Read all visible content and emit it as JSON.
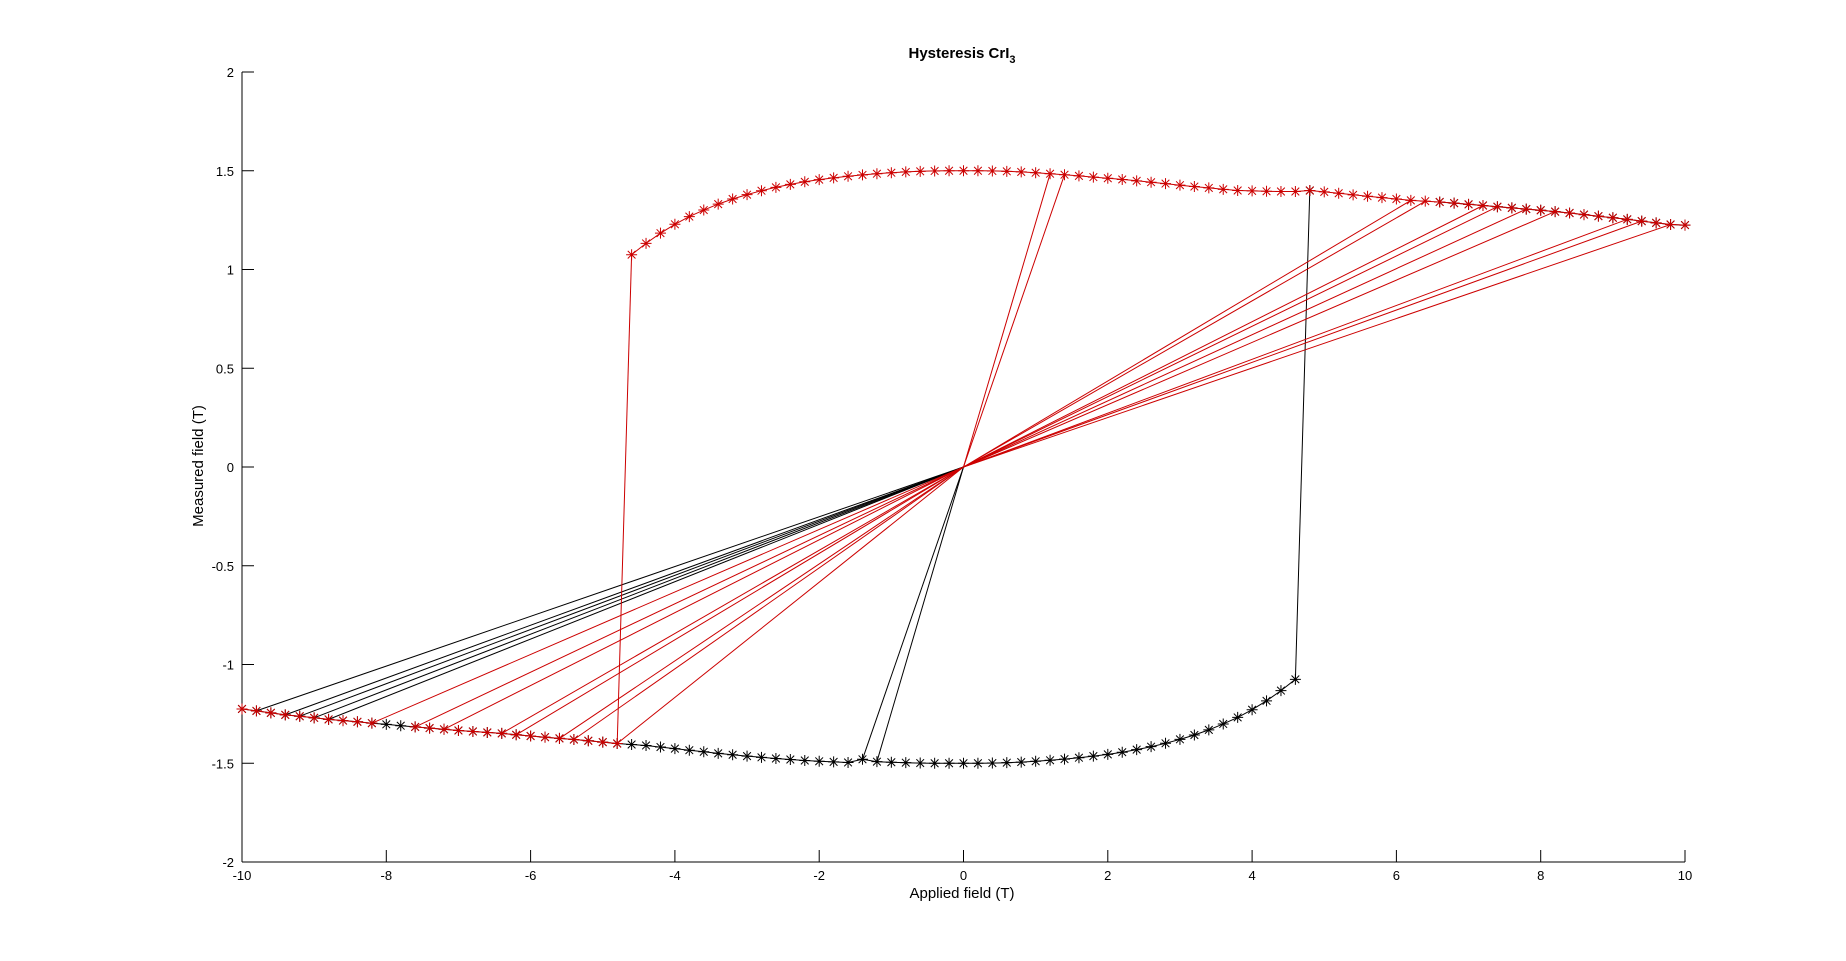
{
  "chart_data": {
    "type": "line",
    "title": "Hysteresis CrI",
    "title_subscript": "3",
    "xlabel": "Applied field (T)",
    "ylabel": "Measured field (T)",
    "xlim": [
      -10,
      10
    ],
    "ylim": [
      -2,
      2
    ],
    "xticks": [
      -10,
      -8,
      -6,
      -4,
      -2,
      0,
      2,
      4,
      6,
      8,
      10
    ],
    "yticks": [
      -2,
      -1.5,
      -1,
      -0.5,
      0,
      0.5,
      1,
      1.5,
      2
    ],
    "xtick_labels": [
      "-10",
      "-8",
      "-6",
      "-4",
      "-2",
      "0",
      "2",
      "4",
      "6",
      "8",
      "10"
    ],
    "ytick_labels": [
      "-2",
      "-1.5",
      "-1",
      "-0.5",
      "0",
      "0.5",
      "1",
      "1.5",
      "2"
    ],
    "grid": false,
    "marker": "asterisk",
    "series": [
      {
        "color": "#000000",
        "segments": [
          [
            [
              0,
              -1.5
            ],
            [
              0.2,
              -1.5
            ],
            [
              0.4,
              -1.499
            ],
            [
              0.6,
              -1.497
            ],
            [
              0.8,
              -1.494
            ],
            [
              1.0,
              -1.49
            ],
            [
              1.2,
              -1.485
            ],
            [
              1.4,
              -1.479
            ],
            [
              1.6,
              -1.472
            ],
            [
              1.8,
              -1.464
            ],
            [
              2.0,
              -1.455
            ],
            [
              2.2,
              -1.444
            ],
            [
              2.4,
              -1.431
            ],
            [
              2.6,
              -1.416
            ],
            [
              2.8,
              -1.399
            ],
            [
              3.0,
              -1.379
            ],
            [
              3.2,
              -1.357
            ],
            [
              3.4,
              -1.331
            ],
            [
              3.6,
              -1.301
            ],
            [
              3.8,
              -1.268
            ],
            [
              4.0,
              -1.229
            ],
            [
              4.2,
              -1.184
            ],
            [
              4.4,
              -1.132
            ],
            [
              4.6,
              -1.075
            ]
          ],
          [
            [
              4.6,
              -1.075
            ],
            [
              4.8,
              1.4
            ]
          ],
          [
            [
              -4.8,
              -1.4
            ],
            [
              -4.6,
              -1.405
            ],
            [
              -4.4,
              -1.41
            ],
            [
              -4.2,
              -1.418
            ],
            [
              -4.0,
              -1.426
            ],
            [
              -3.8,
              -1.434
            ],
            [
              -3.6,
              -1.442
            ],
            [
              -3.4,
              -1.45
            ],
            [
              -3.2,
              -1.457
            ],
            [
              -3.0,
              -1.464
            ],
            [
              -2.8,
              -1.47
            ],
            [
              -2.6,
              -1.476
            ],
            [
              -2.4,
              -1.481
            ],
            [
              -2.2,
              -1.486
            ],
            [
              -2.0,
              -1.49
            ],
            [
              -1.8,
              -1.493
            ],
            [
              -1.6,
              -1.496
            ],
            [
              -1.4,
              -1.48
            ],
            [
              -1.2,
              -1.492
            ],
            [
              -1.0,
              -1.495
            ],
            [
              -0.8,
              -1.497
            ],
            [
              -0.6,
              -1.499
            ],
            [
              -0.4,
              -1.5
            ],
            [
              -0.2,
              -1.5
            ],
            [
              0,
              -1.5
            ]
          ],
          [
            [
              -1.4,
              -1.48
            ],
            [
              0,
              0
            ]
          ],
          [
            [
              -1.2,
              -1.492
            ],
            [
              0,
              0
            ]
          ],
          [
            [
              -10,
              -1.225
            ],
            [
              -9.8,
              -1.235
            ],
            [
              -9.6,
              -1.245
            ],
            [
              -9.4,
              -1.255
            ],
            [
              -9.2,
              -1.262
            ],
            [
              -9.0,
              -1.27
            ],
            [
              -8.8,
              -1.278
            ],
            [
              -8.6,
              -1.284
            ],
            [
              -8.4,
              -1.29
            ],
            [
              -8.2,
              -1.297
            ],
            [
              -8.0,
              -1.303
            ],
            [
              -7.8,
              -1.31
            ],
            [
              -7.6,
              -1.316
            ],
            [
              -7.4,
              -1.322
            ],
            [
              -7.2,
              -1.328
            ],
            [
              -7.0,
              -1.334
            ],
            [
              -6.8,
              -1.339
            ],
            [
              -6.6,
              -1.344
            ],
            [
              -6.4,
              -1.349
            ],
            [
              -6.2,
              -1.356
            ],
            [
              -6.0,
              -1.362
            ],
            [
              -5.8,
              -1.368
            ],
            [
              -5.6,
              -1.374
            ],
            [
              -5.4,
              -1.38
            ],
            [
              -5.2,
              -1.386
            ],
            [
              -5.0,
              -1.393
            ],
            [
              -4.8,
              -1.4
            ]
          ],
          [
            [
              -9.8,
              -1.235
            ],
            [
              0,
              0
            ]
          ],
          [
            [
              -9.4,
              -1.255
            ],
            [
              0,
              0
            ]
          ],
          [
            [
              -9.2,
              -1.262
            ],
            [
              0,
              0
            ]
          ],
          [
            [
              -9.0,
              -1.27
            ],
            [
              0,
              0
            ]
          ],
          [
            [
              -8.8,
              -1.278
            ],
            [
              0,
              0
            ]
          ],
          [
            [
              6.6,
              1.342
            ],
            [
              6.8,
              1.336
            ],
            [
              7.0,
              1.33
            ],
            [
              7.2,
              1.324
            ],
            [
              7.4,
              1.318
            ],
            [
              7.6,
              1.312
            ],
            [
              7.8,
              1.306
            ],
            [
              8.0,
              1.3
            ],
            [
              8.2,
              1.293
            ],
            [
              8.4,
              1.286
            ],
            [
              8.6,
              1.278
            ],
            [
              8.8,
              1.27
            ],
            [
              9.0,
              1.262
            ],
            [
              9.2,
              1.254
            ],
            [
              9.4,
              1.245
            ],
            [
              9.6,
              1.236
            ],
            [
              9.8,
              1.228
            ],
            [
              10,
              1.225
            ]
          ]
        ]
      },
      {
        "color": "#cc0000",
        "segments": [
          [
            [
              -4.6,
              1.075
            ],
            [
              -4.4,
              1.132
            ],
            [
              -4.2,
              1.184
            ],
            [
              -4.0,
              1.229
            ],
            [
              -3.8,
              1.268
            ],
            [
              -3.6,
              1.301
            ],
            [
              -3.4,
              1.331
            ],
            [
              -3.2,
              1.357
            ],
            [
              -3.0,
              1.379
            ],
            [
              -2.8,
              1.399
            ],
            [
              -2.6,
              1.416
            ],
            [
              -2.4,
              1.431
            ],
            [
              -2.2,
              1.444
            ],
            [
              -2.0,
              1.455
            ],
            [
              -1.8,
              1.464
            ],
            [
              -1.6,
              1.472
            ],
            [
              -1.4,
              1.479
            ],
            [
              -1.2,
              1.485
            ],
            [
              -1.0,
              1.49
            ],
            [
              -0.8,
              1.494
            ],
            [
              -0.6,
              1.497
            ],
            [
              -0.4,
              1.499
            ],
            [
              -0.2,
              1.5
            ],
            [
              0,
              1.5
            ],
            [
              0.2,
              1.5
            ],
            [
              0.4,
              1.499
            ],
            [
              0.6,
              1.497
            ],
            [
              0.8,
              1.494
            ],
            [
              1.0,
              1.49
            ],
            [
              1.2,
              1.485
            ],
            [
              1.4,
              1.48
            ],
            [
              1.6,
              1.474
            ],
            [
              1.8,
              1.468
            ],
            [
              2.0,
              1.462
            ],
            [
              2.2,
              1.456
            ],
            [
              2.4,
              1.449
            ],
            [
              2.6,
              1.442
            ],
            [
              2.8,
              1.435
            ],
            [
              3.0,
              1.427
            ],
            [
              3.2,
              1.42
            ],
            [
              3.4,
              1.413
            ],
            [
              3.6,
              1.406
            ],
            [
              3.8,
              1.4
            ],
            [
              4.0,
              1.398
            ],
            [
              4.2,
              1.396
            ],
            [
              4.4,
              1.395
            ],
            [
              4.6,
              1.395
            ],
            [
              4.8,
              1.4
            ],
            [
              5.0,
              1.393
            ],
            [
              5.2,
              1.386
            ],
            [
              5.4,
              1.378
            ],
            [
              5.6,
              1.371
            ],
            [
              5.8,
              1.364
            ],
            [
              6.0,
              1.357
            ],
            [
              6.2,
              1.35
            ],
            [
              6.4,
              1.346
            ],
            [
              6.6,
              1.342
            ],
            [
              6.8,
              1.336
            ],
            [
              7.0,
              1.33
            ],
            [
              7.2,
              1.324
            ],
            [
              7.4,
              1.318
            ],
            [
              7.6,
              1.312
            ],
            [
              7.8,
              1.306
            ],
            [
              8.0,
              1.3
            ],
            [
              8.2,
              1.293
            ],
            [
              8.4,
              1.286
            ],
            [
              8.6,
              1.278
            ],
            [
              8.8,
              1.27
            ],
            [
              9.0,
              1.262
            ],
            [
              9.2,
              1.254
            ],
            [
              9.4,
              1.245
            ],
            [
              9.6,
              1.236
            ],
            [
              9.8,
              1.228
            ],
            [
              10,
              1.225
            ]
          ],
          [
            [
              -4.8,
              -1.4
            ],
            [
              -4.6,
              1.075
            ]
          ],
          [
            [
              1.2,
              1.485
            ],
            [
              0,
              0
            ]
          ],
          [
            [
              1.4,
              1.48
            ],
            [
              0,
              0
            ]
          ],
          [
            [
              6.2,
              1.35
            ],
            [
              0,
              0
            ]
          ],
          [
            [
              6.4,
              1.346
            ],
            [
              0,
              0
            ]
          ],
          [
            [
              7.2,
              1.324
            ],
            [
              0,
              0
            ]
          ],
          [
            [
              7.4,
              1.318
            ],
            [
              0,
              0
            ]
          ],
          [
            [
              7.8,
              1.306
            ],
            [
              0,
              0
            ]
          ],
          [
            [
              8.2,
              1.293
            ],
            [
              0,
              0
            ]
          ],
          [
            [
              9.2,
              1.254
            ],
            [
              0,
              0
            ]
          ],
          [
            [
              9.4,
              1.245
            ],
            [
              0,
              0
            ]
          ],
          [
            [
              9.8,
              1.228
            ],
            [
              0,
              0
            ]
          ],
          [
            [
              -10,
              -1.225
            ],
            [
              -9.8,
              -1.235
            ],
            [
              -9.6,
              -1.245
            ],
            [
              -9.4,
              -1.255
            ],
            [
              -9.2,
              -1.262
            ],
            [
              -9.0,
              -1.27
            ],
            [
              -8.8,
              -1.278
            ],
            [
              -8.6,
              -1.284
            ],
            [
              -8.4,
              -1.29
            ],
            [
              -8.2,
              -1.297
            ]
          ],
          [
            [
              -7.6,
              -1.316
            ],
            [
              -7.4,
              -1.322
            ],
            [
              -7.2,
              -1.328
            ],
            [
              -7.0,
              -1.334
            ],
            [
              -6.8,
              -1.339
            ],
            [
              -6.6,
              -1.344
            ],
            [
              -6.4,
              -1.349
            ],
            [
              -6.2,
              -1.356
            ],
            [
              -6.0,
              -1.362
            ],
            [
              -5.8,
              -1.368
            ],
            [
              -5.6,
              -1.374
            ],
            [
              -5.4,
              -1.38
            ],
            [
              -5.2,
              -1.386
            ],
            [
              -5.0,
              -1.393
            ],
            [
              -4.8,
              -1.4
            ]
          ],
          [
            [
              -8.2,
              -1.297
            ],
            [
              0,
              0
            ]
          ],
          [
            [
              -7.6,
              -1.316
            ],
            [
              0,
              0
            ]
          ],
          [
            [
              -7.2,
              -1.328
            ],
            [
              0,
              0
            ]
          ],
          [
            [
              -6.4,
              -1.349
            ],
            [
              0,
              0
            ]
          ],
          [
            [
              -6.2,
              -1.356
            ],
            [
              0,
              0
            ]
          ],
          [
            [
              -5.6,
              -1.374
            ],
            [
              0,
              0
            ]
          ],
          [
            [
              -5.4,
              -1.38
            ],
            [
              0,
              0
            ]
          ],
          [
            [
              -4.8,
              -1.4
            ],
            [
              0,
              0
            ]
          ]
        ]
      }
    ]
  }
}
